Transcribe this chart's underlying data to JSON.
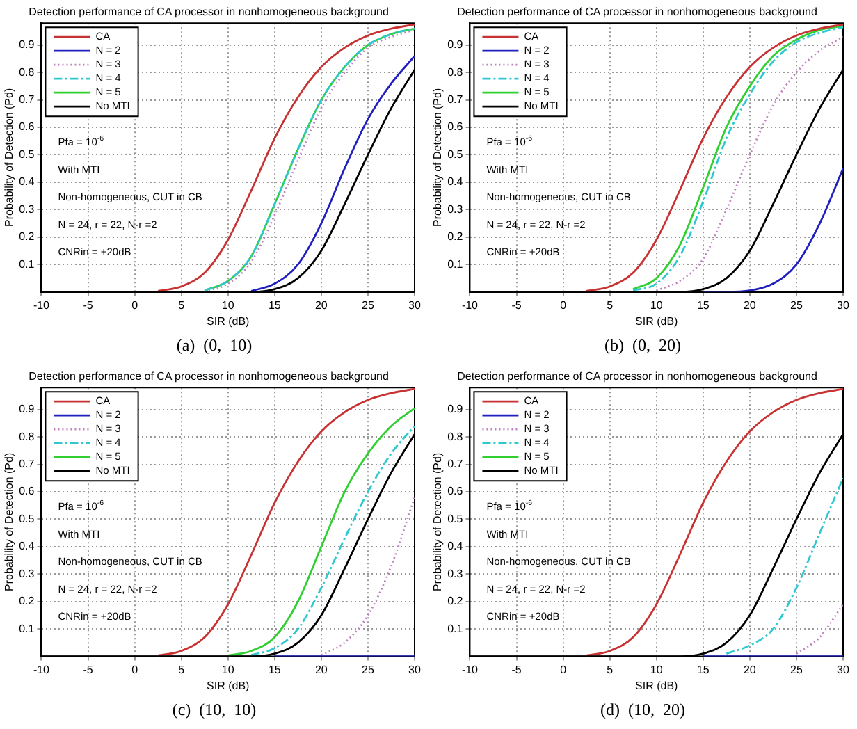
{
  "chart_data": [
    {
      "type": "line",
      "title": "Detection performance of CA processor in nonhomogeneous background",
      "subtitle": "(a)  (0,  10)",
      "xlabel": "SIR (dB)",
      "ylabel": "Probability of Detection (Pd)",
      "xlim": [
        -10,
        30
      ],
      "xticks": [
        -10,
        -5,
        0,
        5,
        10,
        15,
        20,
        25,
        30
      ],
      "ylim": [
        0,
        0.98
      ],
      "yticks": [
        0.1,
        0.2,
        0.3,
        0.4,
        0.5,
        0.6,
        0.7,
        0.8,
        0.9
      ],
      "grid": true,
      "legend": "top left",
      "marker": "none",
      "annotations": [
        "Pfa = 10$^{-6}$",
        "With MTI",
        "Non-homogeneous, CUT in CB",
        "N = 24, r = 22, N-r =2",
        "CNRin = +20dB"
      ],
      "x": [
        -10,
        0,
        2.5,
        5,
        7.5,
        10,
        12.5,
        15,
        17.5,
        20,
        22.5,
        25,
        27.5,
        30
      ],
      "series": [
        {
          "name": "CA",
          "color": "#c83232",
          "line_style": "solid",
          "values": [
            null,
            null,
            0.003,
            0.02,
            0.07,
            0.19,
            0.37,
            0.56,
            0.71,
            0.82,
            0.89,
            0.935,
            0.96,
            0.975
          ]
        },
        {
          "name": "N = 2",
          "color": "#2020c0",
          "line_style": "solid",
          "values": [
            null,
            null,
            null,
            null,
            null,
            null,
            0.003,
            0.03,
            0.1,
            0.25,
            0.45,
            0.63,
            0.76,
            0.86
          ]
        },
        {
          "name": "N = 3",
          "color": "#c080c0",
          "line_style": "dotted",
          "values": [
            null,
            null,
            null,
            null,
            0.002,
            0.03,
            0.11,
            0.28,
            0.48,
            0.67,
            0.8,
            0.89,
            0.93,
            0.955
          ]
        },
        {
          "name": "N = 4",
          "color": "#30c8d0",
          "line_style": "dashed",
          "values": [
            null,
            null,
            null,
            null,
            0.005,
            0.04,
            0.13,
            0.32,
            0.52,
            0.7,
            0.82,
            0.9,
            0.94,
            0.96
          ]
        },
        {
          "name": "N = 5",
          "color": "#30d030",
          "line_style": "solid",
          "values": [
            null,
            null,
            null,
            null,
            0.005,
            0.04,
            0.13,
            0.32,
            0.52,
            0.7,
            0.82,
            0.9,
            0.94,
            0.96
          ]
        },
        {
          "name": "No MTI",
          "color": "#000000",
          "line_style": "solid",
          "values": [
            0,
            0,
            0,
            0,
            0,
            0,
            0,
            0.01,
            0.05,
            0.15,
            0.32,
            0.5,
            0.67,
            0.81
          ]
        }
      ]
    },
    {
      "type": "line",
      "title": "Detection performance of CA processor in nonhomogeneous background",
      "subtitle": "(b)  (0,  20)",
      "xlabel": "SIR (dB)",
      "ylabel": "Probability of Detection (Pd)",
      "xlim": [
        -10,
        30
      ],
      "xticks": [
        -10,
        -5,
        0,
        5,
        10,
        15,
        20,
        25,
        30
      ],
      "ylim": [
        0,
        0.98
      ],
      "yticks": [
        0.1,
        0.2,
        0.3,
        0.4,
        0.5,
        0.6,
        0.7,
        0.8,
        0.9
      ],
      "grid": true,
      "legend": "top left",
      "marker": "none",
      "annotations": [
        "Pfa = 10$^{-6}$",
        "With MTI",
        "Non-homogeneous, CUT in CB",
        "N = 24, r = 22, N-r =2",
        "CNRin = +20dB"
      ],
      "x": [
        -10,
        0,
        2.5,
        5,
        7.5,
        10,
        12.5,
        15,
        17.5,
        20,
        22.5,
        25,
        27.5,
        30
      ],
      "series": [
        {
          "name": "CA",
          "color": "#c83232",
          "line_style": "solid",
          "values": [
            null,
            null,
            0.003,
            0.02,
            0.07,
            0.19,
            0.37,
            0.56,
            0.71,
            0.82,
            0.89,
            0.935,
            0.96,
            0.975
          ]
        },
        {
          "name": "N = 2",
          "color": "#2020c0",
          "line_style": "solid",
          "values": [
            null,
            null,
            null,
            null,
            null,
            null,
            null,
            0,
            0,
            0.005,
            0.03,
            0.1,
            0.25,
            0.45
          ]
        },
        {
          "name": "N = 3",
          "color": "#c080c0",
          "line_style": "dotted",
          "values": [
            null,
            null,
            null,
            null,
            null,
            0.005,
            0.04,
            0.12,
            0.3,
            0.5,
            0.68,
            0.8,
            0.88,
            0.93
          ]
        },
        {
          "name": "N = 4",
          "color": "#30c8d0",
          "line_style": "dashed",
          "values": [
            null,
            null,
            null,
            null,
            0.005,
            0.03,
            0.13,
            0.33,
            0.56,
            0.72,
            0.84,
            0.91,
            0.945,
            0.965
          ]
        },
        {
          "name": "N = 5",
          "color": "#30d030",
          "line_style": "solid",
          "values": [
            null,
            null,
            null,
            null,
            0.01,
            0.05,
            0.17,
            0.38,
            0.6,
            0.75,
            0.86,
            0.92,
            0.955,
            0.97
          ]
        },
        {
          "name": "No MTI",
          "color": "#000000",
          "line_style": "solid",
          "values": [
            0,
            0,
            0,
            0,
            0,
            0,
            0,
            0.01,
            0.05,
            0.15,
            0.32,
            0.5,
            0.67,
            0.81
          ]
        }
      ]
    },
    {
      "type": "line",
      "title": "Detection performance of CA processor in nonhomogeneous background",
      "subtitle": "(c)  (10,  10)",
      "xlabel": "SIR (dB)",
      "ylabel": "Probability of Detection (Pd)",
      "xlim": [
        -10,
        30
      ],
      "xticks": [
        -10,
        -5,
        0,
        5,
        10,
        15,
        20,
        25,
        30
      ],
      "ylim": [
        0,
        0.98
      ],
      "yticks": [
        0.1,
        0.2,
        0.3,
        0.4,
        0.5,
        0.6,
        0.7,
        0.8,
        0.9
      ],
      "grid": true,
      "legend": "top left",
      "marker": "none",
      "annotations": [
        "Pfa = 10$^{-6}$",
        "With MTI",
        "Non-homogeneous, CUT in CB",
        "N = 24, r = 22, N-r =2",
        "CNRin = +20dB"
      ],
      "x": [
        -10,
        0,
        2.5,
        5,
        7.5,
        10,
        12.5,
        15,
        17.5,
        20,
        22.5,
        25,
        27.5,
        30
      ],
      "series": [
        {
          "name": "CA",
          "color": "#c83232",
          "line_style": "solid",
          "values": [
            null,
            null,
            0.003,
            0.02,
            0.07,
            0.19,
            0.37,
            0.56,
            0.71,
            0.82,
            0.89,
            0.935,
            0.96,
            0.975
          ]
        },
        {
          "name": "N = 2",
          "color": "#2020c0",
          "line_style": "solid",
          "values": [
            null,
            null,
            null,
            null,
            null,
            null,
            null,
            0,
            0,
            0,
            0,
            0,
            0,
            0
          ]
        },
        {
          "name": "N = 3",
          "color": "#c080c0",
          "line_style": "dotted",
          "values": [
            null,
            null,
            null,
            null,
            null,
            null,
            null,
            null,
            null,
            0.005,
            0.05,
            0.15,
            0.33,
            0.58
          ]
        },
        {
          "name": "N = 4",
          "color": "#30c8d0",
          "line_style": "dashed",
          "values": [
            null,
            null,
            null,
            null,
            null,
            null,
            0.005,
            0.03,
            0.1,
            0.25,
            0.43,
            0.6,
            0.74,
            0.84
          ]
        },
        {
          "name": "N = 5",
          "color": "#30d030",
          "line_style": "solid",
          "values": [
            null,
            null,
            null,
            null,
            null,
            0.003,
            0.02,
            0.07,
            0.2,
            0.4,
            0.6,
            0.74,
            0.84,
            0.905
          ]
        },
        {
          "name": "No MTI",
          "color": "#000000",
          "line_style": "solid",
          "values": [
            0,
            0,
            0,
            0,
            0,
            0,
            0,
            0.01,
            0.05,
            0.15,
            0.32,
            0.5,
            0.67,
            0.81
          ]
        }
      ]
    },
    {
      "type": "line",
      "title": "Detection performance of CA processor in nonhomogeneous background",
      "subtitle": "(d)  (10,  20)",
      "xlabel": "SIR (dB)",
      "ylabel": "Probability of Detection (Pd)",
      "xlim": [
        -10,
        30
      ],
      "xticks": [
        -10,
        -5,
        0,
        5,
        10,
        15,
        20,
        25,
        30
      ],
      "ylim": [
        0,
        0.98
      ],
      "yticks": [
        0.1,
        0.2,
        0.3,
        0.4,
        0.5,
        0.6,
        0.7,
        0.8,
        0.9
      ],
      "grid": true,
      "legend": "top left",
      "marker": "none",
      "annotations": [
        "Pfa = 10$^{-6}$",
        "With MTI",
        "Non-homogeneous, CUT in CB",
        "N = 24, r = 22, N-r =2",
        "CNRin = +20dB"
      ],
      "x": [
        -10,
        0,
        2.5,
        5,
        7.5,
        10,
        12.5,
        15,
        17.5,
        20,
        22.5,
        25,
        27.5,
        30
      ],
      "series": [
        {
          "name": "CA",
          "color": "#c83232",
          "line_style": "solid",
          "values": [
            null,
            null,
            0.003,
            0.02,
            0.07,
            0.19,
            0.37,
            0.56,
            0.71,
            0.82,
            0.89,
            0.935,
            0.96,
            0.975
          ]
        },
        {
          "name": "N = 2",
          "color": "#2020c0",
          "line_style": "solid",
          "values": [
            null,
            null,
            null,
            null,
            null,
            null,
            null,
            0,
            0,
            0,
            0,
            0,
            0,
            0
          ]
        },
        {
          "name": "N = 3",
          "color": "#c080c0",
          "line_style": "dotted",
          "values": [
            null,
            null,
            null,
            null,
            null,
            null,
            null,
            null,
            null,
            null,
            null,
            0.01,
            0.07,
            0.19
          ]
        },
        {
          "name": "N = 4",
          "color": "#30c8d0",
          "line_style": "dashed",
          "values": [
            null,
            null,
            null,
            null,
            null,
            null,
            null,
            null,
            0.01,
            0.04,
            0.1,
            0.25,
            0.45,
            0.65
          ]
        },
        {
          "name": "N = 5",
          "color": "#30d030",
          "line_style": "solid",
          "values": [
            null,
            null,
            null,
            null,
            null,
            null,
            null,
            null,
            null,
            null,
            null,
            null,
            null,
            null
          ]
        },
        {
          "name": "No MTI",
          "color": "#000000",
          "line_style": "solid",
          "values": [
            0,
            0,
            0,
            0,
            0,
            0,
            0,
            0.01,
            0.05,
            0.15,
            0.32,
            0.5,
            0.67,
            0.81
          ]
        }
      ]
    }
  ]
}
